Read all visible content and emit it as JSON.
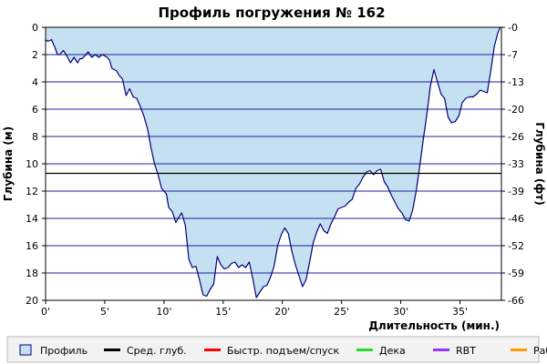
{
  "chart_data": {
    "type": "area",
    "title": "Профиль погружения № 162",
    "xlabel": "Длительность (мин.)",
    "ylabel_left": "Глубина (м)",
    "ylabel_right": "Глубина (фт)",
    "x_ticks": [
      "0'",
      "5'",
      "10'",
      "15'",
      "20'",
      "25'",
      "30'",
      "35'"
    ],
    "x_tick_values": [
      0,
      5,
      10,
      15,
      20,
      25,
      30,
      35
    ],
    "xlim": [
      0,
      38.5
    ],
    "ylim": [
      0,
      20
    ],
    "y_inverted": true,
    "y_ticks_left": [
      "0",
      "2",
      "4",
      "6",
      "8",
      "10",
      "12",
      "14",
      "16",
      "18",
      "20"
    ],
    "y_tick_values_left": [
      0,
      2,
      4,
      6,
      8,
      10,
      12,
      14,
      16,
      18,
      20
    ],
    "y_ticks_right": [
      "0",
      "7",
      "13",
      "20",
      "26",
      "33",
      "39",
      "46",
      "52",
      "59",
      "66"
    ],
    "grid": true,
    "average_depth": 10.7,
    "series": [
      {
        "name": "Профиль",
        "color": "#c5e0f1",
        "line_color": "#00007a",
        "x": [
          0,
          0.1,
          0.3,
          0.5,
          0.8,
          1.0,
          1.2,
          1.5,
          1.8,
          2.1,
          2.4,
          2.7,
          2.9,
          3.1,
          3.4,
          3.6,
          3.9,
          4.2,
          4.5,
          4.8,
          5.0,
          5.2,
          5.4,
          5.6,
          5.8,
          6.0,
          6.2,
          6.5,
          6.8,
          7.1,
          7.4,
          7.7,
          8.0,
          8.3,
          8.6,
          8.9,
          9.2,
          9.5,
          9.8,
          10.0,
          10.2,
          10.4,
          10.7,
          11.0,
          11.2,
          11.5,
          11.8,
          12.1,
          12.4,
          12.7,
          13.0,
          13.3,
          13.6,
          13.9,
          14.2,
          14.5,
          14.8,
          15.1,
          15.4,
          15.7,
          16.0,
          16.3,
          16.6,
          16.9,
          17.2,
          17.5,
          17.8,
          18.1,
          18.4,
          18.7,
          19.0,
          19.3,
          19.6,
          19.9,
          20.2,
          20.5,
          20.8,
          21.1,
          21.4,
          21.7,
          22.0,
          22.3,
          22.6,
          22.9,
          23.2,
          23.5,
          23.8,
          24.1,
          24.4,
          24.7,
          25.0,
          25.3,
          25.6,
          25.9,
          26.2,
          26.5,
          26.8,
          27.1,
          27.4,
          27.7,
          28.0,
          28.3,
          28.6,
          28.9,
          29.2,
          29.5,
          29.8,
          30.1,
          30.4,
          30.7,
          31.0,
          31.3,
          31.6,
          31.9,
          32.2,
          32.5,
          32.8,
          33.1,
          33.4,
          33.7,
          34.0,
          34.3,
          34.6,
          34.9,
          35.2,
          35.5,
          35.8,
          36.1,
          36.4,
          36.7,
          37.0,
          37.3,
          37.6,
          37.9,
          38.2,
          38.4
        ],
        "y": [
          0.9,
          1.0,
          1.0,
          0.9,
          1.5,
          2.0,
          2.0,
          1.7,
          2.1,
          2.6,
          2.2,
          2.6,
          2.3,
          2.3,
          2.0,
          1.8,
          2.2,
          2.0,
          2.2,
          2.0,
          2.1,
          2.2,
          2.4,
          3.0,
          3.1,
          3.2,
          3.5,
          3.8,
          5.0,
          4.5,
          5.1,
          5.2,
          5.8,
          6.5,
          7.4,
          8.8,
          10.0,
          10.8,
          11.8,
          12.0,
          12.2,
          13.2,
          13.5,
          14.3,
          14.0,
          13.6,
          14.5,
          17.0,
          17.6,
          17.5,
          18.5,
          19.6,
          19.7,
          19.2,
          18.8,
          16.8,
          17.4,
          17.7,
          17.6,
          17.3,
          17.2,
          17.6,
          17.4,
          17.6,
          17.2,
          18.4,
          19.8,
          19.4,
          19.0,
          18.9,
          18.3,
          17.5,
          16.0,
          15.2,
          14.7,
          15.1,
          16.4,
          17.4,
          18.2,
          19.0,
          18.5,
          17.2,
          15.8,
          15.0,
          14.4,
          14.9,
          15.1,
          14.4,
          13.9,
          13.3,
          13.2,
          13.1,
          12.8,
          12.6,
          11.8,
          11.5,
          11.0,
          10.6,
          10.5,
          10.8,
          10.5,
          10.4,
          11.3,
          11.7,
          12.3,
          12.8,
          13.3,
          13.6,
          14.1,
          14.2,
          13.4,
          12.0,
          10.2,
          8.2,
          6.4,
          4.3,
          3.1,
          4.0,
          4.9,
          5.2,
          6.6,
          7.0,
          6.9,
          6.5,
          5.5,
          5.2,
          5.1,
          5.1,
          4.9,
          4.6,
          4.7,
          4.8,
          3.2,
          1.4,
          0.4,
          0.0
        ]
      }
    ],
    "legend": [
      {
        "label": "Профиль",
        "color": "#c5e0f1",
        "kind": "box"
      },
      {
        "label": "Сред. глуб.",
        "color": "#000000",
        "kind": "line"
      },
      {
        "label": "Быстр. подъем/спуск",
        "color": "#ff0000",
        "kind": "line"
      },
      {
        "label": "Дека",
        "color": "#22dd22",
        "kind": "line"
      },
      {
        "label": "RBT",
        "color": "#9933ff",
        "kind": "line"
      },
      {
        "label": "Раб.",
        "color": "#ff9900",
        "kind": "line"
      }
    ],
    "legend_position": "bottom"
  }
}
